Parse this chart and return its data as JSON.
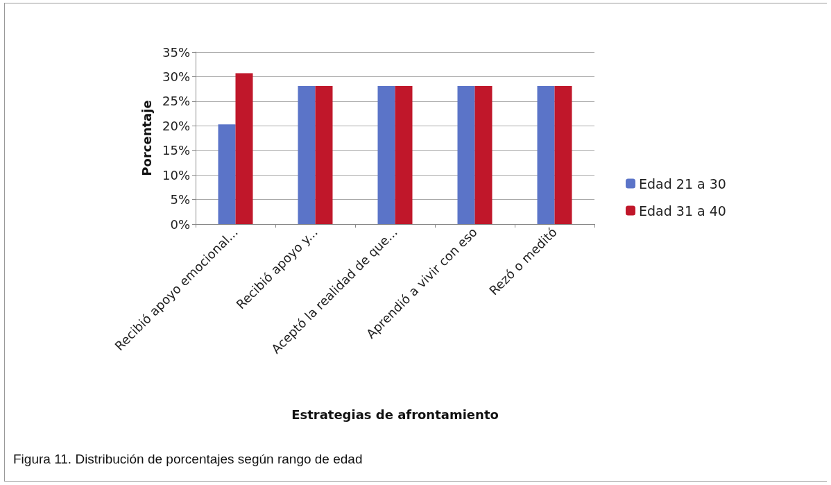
{
  "chart_data": {
    "type": "bar",
    "xlabel": "Estrategias de afrontamiento",
    "ylabel": "Porcentaje",
    "categories": [
      "Recibió apoyo emocional...",
      "Recibió apoyo y...",
      "Aceptó la realidad de que...",
      "Aprendió a vivir con eso",
      "Rezó o meditó"
    ],
    "series": [
      {
        "name": "Edad 21 a 30",
        "color": "#5b74c8",
        "values": [
          20.3,
          28.1,
          28.1,
          28.1,
          28.1
        ]
      },
      {
        "name": "Edad 31 a 40",
        "color": "#c0172a",
        "values": [
          30.7,
          28.1,
          28.1,
          28.1,
          28.1
        ]
      }
    ],
    "ylim": [
      0,
      35
    ],
    "yticks": [
      {
        "value": 0,
        "label": "0%"
      },
      {
        "value": 5,
        "label": "5%"
      },
      {
        "value": 10,
        "label": "10%"
      },
      {
        "value": 15,
        "label": "15%"
      },
      {
        "value": 20,
        "label": "20%"
      },
      {
        "value": 25,
        "label": "25%"
      },
      {
        "value": 30,
        "label": "30%"
      },
      {
        "value": 35,
        "label": "35%"
      }
    ],
    "grid": "y",
    "legend": "right",
    "annotations": [
      "Figura 11. Distribución de porcentajes según rango de edad"
    ]
  }
}
